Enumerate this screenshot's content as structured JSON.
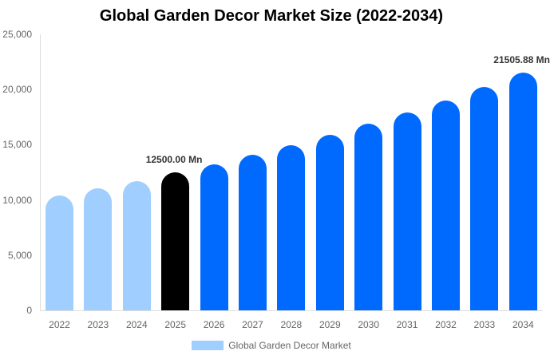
{
  "chart_data": {
    "type": "bar",
    "title": "Global Garden Decor Market Size (2022-2034)",
    "xlabel": "",
    "ylabel": "",
    "ylim": [
      0,
      25000
    ],
    "yticks": [
      "0",
      "5,000",
      "10,000",
      "15,000",
      "20,000",
      "25,000"
    ],
    "categories": [
      "2022",
      "2023",
      "2024",
      "2025",
      "2026",
      "2027",
      "2028",
      "2029",
      "2030",
      "2031",
      "2032",
      "2033",
      "2034"
    ],
    "series": [
      {
        "name": "Global Garden Decor Market",
        "values": [
          10400,
          11050,
          11700,
          12500,
          13220,
          14080,
          14960,
          15890,
          16900,
          17920,
          19000,
          20230,
          21505.88
        ],
        "colors": [
          "#a0cfff",
          "#a0cfff",
          "#a0cfff",
          "#000000",
          "#006aff",
          "#006aff",
          "#006aff",
          "#006aff",
          "#006aff",
          "#006aff",
          "#006aff",
          "#006aff",
          "#006aff"
        ]
      }
    ],
    "annotations": [
      {
        "category": "2025",
        "text": "12500.00 Mn"
      },
      {
        "category": "2034",
        "text": "21505.88 Mn"
      }
    ],
    "grid": false,
    "legend_position": "bottom"
  },
  "legend": {
    "label": "Global Garden Decor Market",
    "color": "#a0cfff"
  }
}
